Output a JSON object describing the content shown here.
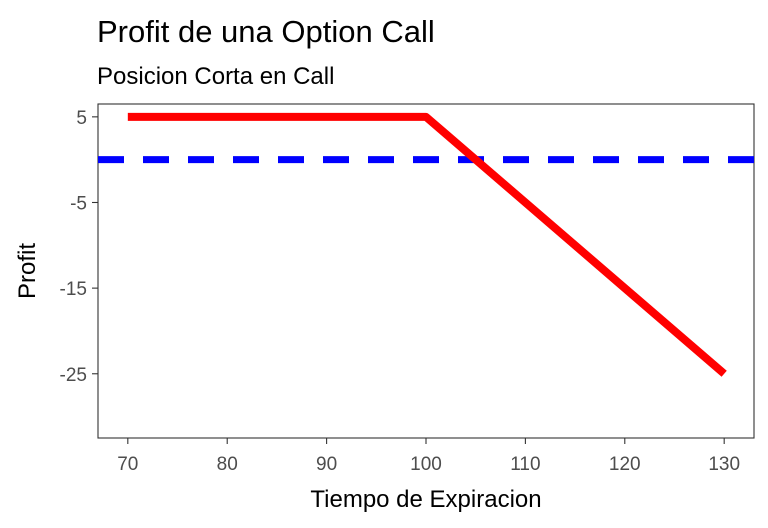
{
  "chart_data": {
    "type": "line",
    "title": "Profit de una Option Call",
    "subtitle": "Posicion Corta en Call",
    "xlabel": "Tiempo de Expiracion",
    "ylabel": "Profit",
    "xlim": [
      67,
      133
    ],
    "ylim": [
      -32.5,
      6.5
    ],
    "x_ticks": [
      70,
      80,
      90,
      100,
      110,
      120,
      130
    ],
    "x_tick_labels": [
      "70",
      "80",
      "90",
      "100",
      "110",
      "120",
      "130"
    ],
    "y_ticks": [
      5,
      -5,
      -15,
      -25
    ],
    "y_tick_labels": [
      "5",
      "-5",
      "-15",
      "-25"
    ],
    "grid": false,
    "series": [
      {
        "x": [
          70,
          100,
          130
        ],
        "y": [
          5,
          5,
          -25
        ],
        "color": "#ff0000",
        "style": "solid"
      }
    ],
    "reference_lines": [
      {
        "orientation": "horizontal",
        "y": 0,
        "color": "#0000ff",
        "style": "dashed"
      }
    ]
  }
}
